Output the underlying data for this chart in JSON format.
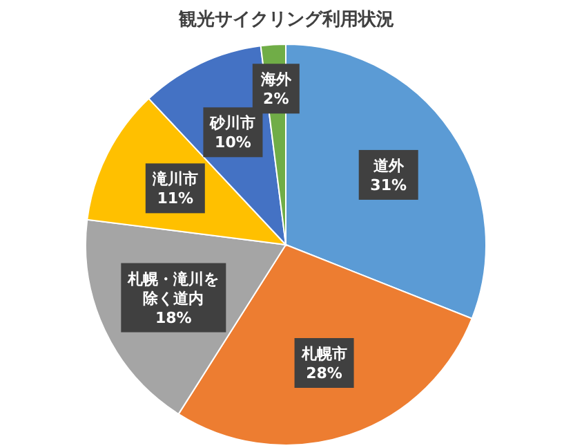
{
  "chart_data": {
    "type": "pie",
    "title": "観光サイクリング利用状況",
    "categories": [
      "道外",
      "札幌市",
      "札幌・滝川を除く道内",
      "滝川市",
      "砂川市",
      "海外"
    ],
    "values": [
      31,
      28,
      18,
      11,
      10,
      2
    ],
    "colors": [
      "#5b9bd5",
      "#ed7d31",
      "#a5a5a5",
      "#ffc000",
      "#4472c4",
      "#70ad47"
    ],
    "value_labels": [
      "31%",
      "28%",
      "18%",
      "11%",
      "10%",
      "2%"
    ]
  }
}
